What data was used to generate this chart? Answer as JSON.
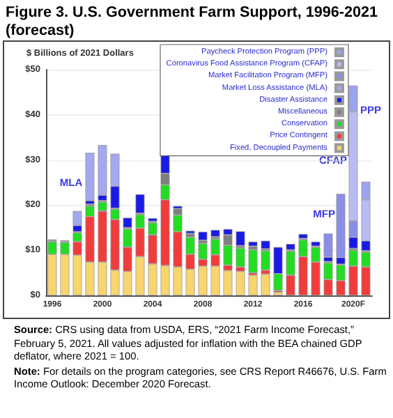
{
  "chart_data": {
    "type": "bar",
    "stacked": true,
    "title": "Figure 3. U.S. Government Farm Support, 1996-2021 (forecast)",
    "ylabel": "$ Billions of 2021 Dollars",
    "categories": [
      "1996",
      null,
      null,
      null,
      "2000",
      null,
      null,
      null,
      "2004",
      null,
      null,
      null,
      "2008",
      null,
      null,
      null,
      "2012",
      null,
      null,
      null,
      "2016",
      null,
      null,
      null,
      "2020F",
      null
    ],
    "series": [
      {
        "name": "Fixed, Decoupled Payments",
        "color": "#f9d56e",
        "values": [
          9.1,
          9.1,
          8.9,
          7.4,
          7.4,
          5.6,
          5.3,
          8.6,
          7,
          6.6,
          6.3,
          5.8,
          6.5,
          6.5,
          5.5,
          5.3,
          4.5,
          4.7,
          0.7,
          null,
          null,
          null,
          null,
          null,
          null,
          null
        ]
      },
      {
        "name": "Price Contingent",
        "color": "#f23c3c",
        "values": [
          null,
          null,
          3,
          10.1,
          11.3,
          11.2,
          5.4,
          6.3,
          6.4,
          14.6,
          7.8,
          3.3,
          1.5,
          2.5,
          1.2,
          1,
          0.5,
          0.9,
          0.4,
          4.5,
          8.6,
          7.4,
          3.5,
          3.3,
          6.5,
          6.3
        ]
      },
      {
        "name": "Conservation",
        "color": "#22dd22",
        "values": [
          2.8,
          2.6,
          2,
          2.3,
          2,
          2.3,
          4,
          3,
          2.7,
          3.3,
          3.7,
          3.8,
          3.5,
          3.5,
          4.4,
          4.2,
          5.1,
          4.3,
          3.7,
          5.3,
          3.7,
          3.2,
          3.7,
          3.4,
          3.5,
          3.3
        ]
      },
      {
        "name": "Miscellaneous",
        "color": "#7f7f7f",
        "values": [
          0.3,
          0.3,
          0.2,
          0.4,
          0.3,
          0.2,
          0.3,
          0.3,
          0.3,
          2.5,
          1.4,
          0.8,
          0.7,
          0.5,
          2.3,
          0.5,
          0.8,
          0.4,
          null,
          0.3,
          0.3,
          0.3,
          0.3,
          0.2,
          0.4,
          0.3
        ]
      },
      {
        "name": "Disaster Assistance",
        "color": "#1a1ae6",
        "values": [
          0.2,
          0.2,
          1.4,
          0.8,
          1.2,
          4.9,
          2.2,
          4.2,
          0.7,
          4.3,
          0.6,
          0.6,
          1.9,
          1.5,
          1.3,
          3.2,
          1,
          1.8,
          5.9,
          1.3,
          1,
          1,
          1,
          1.5,
          2.5,
          2.2
        ]
      },
      {
        "name": "Market Loss Assistance (MLA)",
        "color": "#a3a8f0",
        "values": [
          null,
          null,
          3.2,
          10.6,
          11.1,
          7.2,
          null,
          null,
          null,
          null,
          null,
          null,
          null,
          null,
          null,
          null,
          null,
          null,
          null,
          null,
          null,
          null,
          null,
          null,
          null,
          null
        ]
      },
      {
        "name": "Market Facilitation Program (MFP)",
        "color": "#8a8ee8",
        "values": [
          null,
          null,
          null,
          null,
          null,
          null,
          null,
          null,
          null,
          null,
          null,
          null,
          null,
          null,
          null,
          null,
          null,
          null,
          null,
          null,
          null,
          null,
          5.2,
          14.1,
          3.6,
          null
        ]
      },
      {
        "name": "Coronavirus Food Assistance Program (CFAP)",
        "color": "#b8bcf3",
        "values": [
          null,
          null,
          null,
          null,
          null,
          null,
          null,
          null,
          null,
          null,
          null,
          null,
          null,
          null,
          null,
          null,
          null,
          null,
          null,
          null,
          null,
          null,
          null,
          null,
          24.2,
          9.1
        ]
      },
      {
        "name": "Paycheck Protection Program (PPP)",
        "color": "#9ca2ee",
        "values": [
          null,
          null,
          null,
          null,
          null,
          null,
          null,
          null,
          null,
          null,
          null,
          null,
          null,
          null,
          null,
          null,
          null,
          null,
          null,
          null,
          null,
          null,
          null,
          null,
          5.8,
          4
        ]
      }
    ],
    "ylim": [
      0,
      50
    ],
    "yticks": [
      {
        "value": 0,
        "label": "$0"
      },
      {
        "value": 10,
        "label": "$10"
      },
      {
        "value": 20,
        "label": "$20"
      },
      {
        "value": 30,
        "label": "$30"
      },
      {
        "value": 40,
        "label": "$40"
      },
      {
        "value": 50,
        "label": "$50"
      }
    ],
    "grid": "y",
    "legend": "top",
    "annotations": [
      "MLA",
      "MFP",
      "CFAP",
      "PPP",
      "Source: CRS using data from USDA, ERS, “2021 Farm Income Forecast,” February 5, 2021. All values adjusted for inflation with the BEA chained GDP deflator, where 2021 = 100.",
      "Note: For details on the program categories, see CRS Report R46676, U.S. Farm Income Outlook: December 2020 Forecast."
    ]
  }
}
